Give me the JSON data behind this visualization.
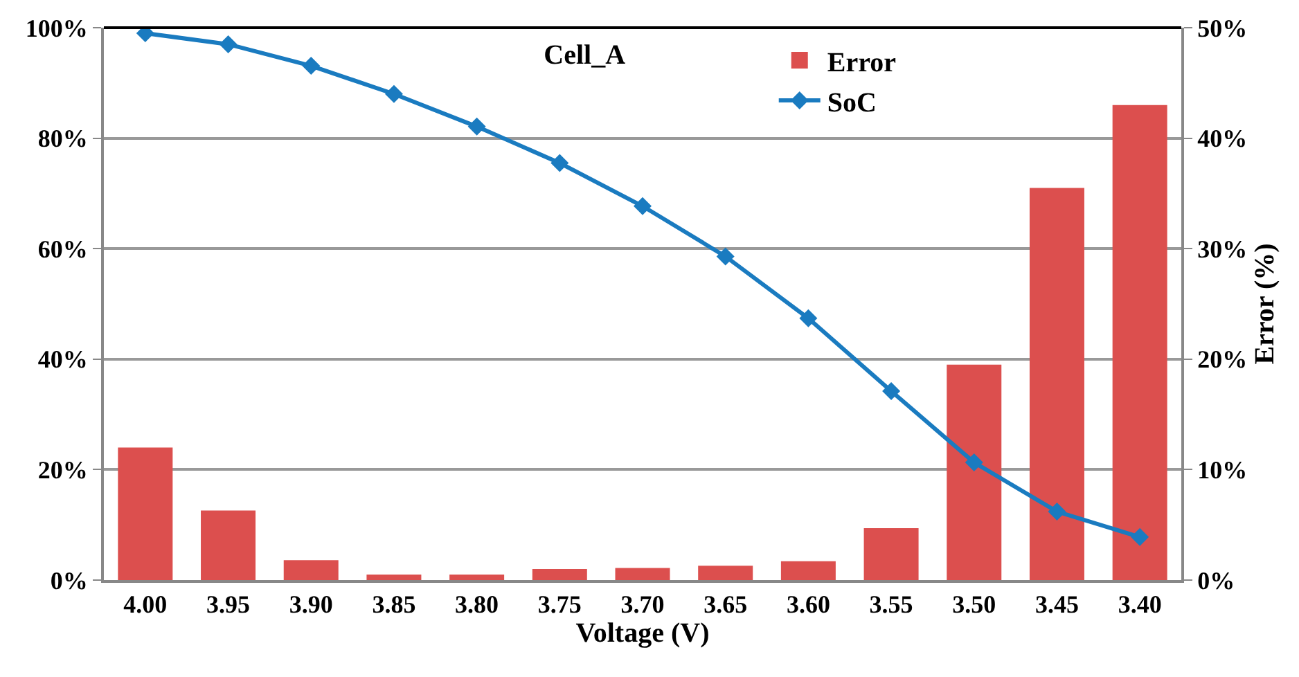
{
  "chart_data": {
    "type": "bar",
    "title": "Cell_A",
    "xlabel": "Voltage (V)",
    "y2label": "Error (%)",
    "categories": [
      "4.00",
      "3.95",
      "3.90",
      "3.85",
      "3.80",
      "3.75",
      "3.70",
      "3.65",
      "3.60",
      "3.55",
      "3.50",
      "3.45",
      "3.40"
    ],
    "series": [
      {
        "name": "Error",
        "axis": "y2",
        "color": "#dc4f4e",
        "values": [
          12.0,
          6.3,
          1.8,
          0.5,
          0.5,
          1.0,
          1.1,
          1.3,
          1.7,
          4.7,
          19.5,
          35.5,
          43.0
        ]
      },
      {
        "name": "SoC",
        "type": "line",
        "color": "#1a7bc0",
        "marker": "diamond",
        "values": [
          99.0,
          97.0,
          93.1,
          88.0,
          82.1,
          75.5,
          67.7,
          58.6,
          47.4,
          34.2,
          21.3,
          12.4,
          7.8
        ]
      }
    ],
    "ylim": [
      0,
      100
    ],
    "yticks": [
      {
        "value": 0,
        "label": "0%"
      },
      {
        "value": 20,
        "label": "20%"
      },
      {
        "value": 40,
        "label": "40%"
      },
      {
        "value": 60,
        "label": "60%"
      },
      {
        "value": 80,
        "label": "80%"
      },
      {
        "value": 100,
        "label": "100%"
      }
    ],
    "y2lim": [
      0,
      50
    ],
    "y2ticks": [
      {
        "value": 0,
        "label": "0%"
      },
      {
        "value": 10,
        "label": "10%"
      },
      {
        "value": 20,
        "label": "20%"
      },
      {
        "value": 30,
        "label": "30%"
      },
      {
        "value": 40,
        "label": "40%"
      },
      {
        "value": 50,
        "label": "50%"
      }
    ],
    "grid": "y",
    "legend": "top right"
  }
}
